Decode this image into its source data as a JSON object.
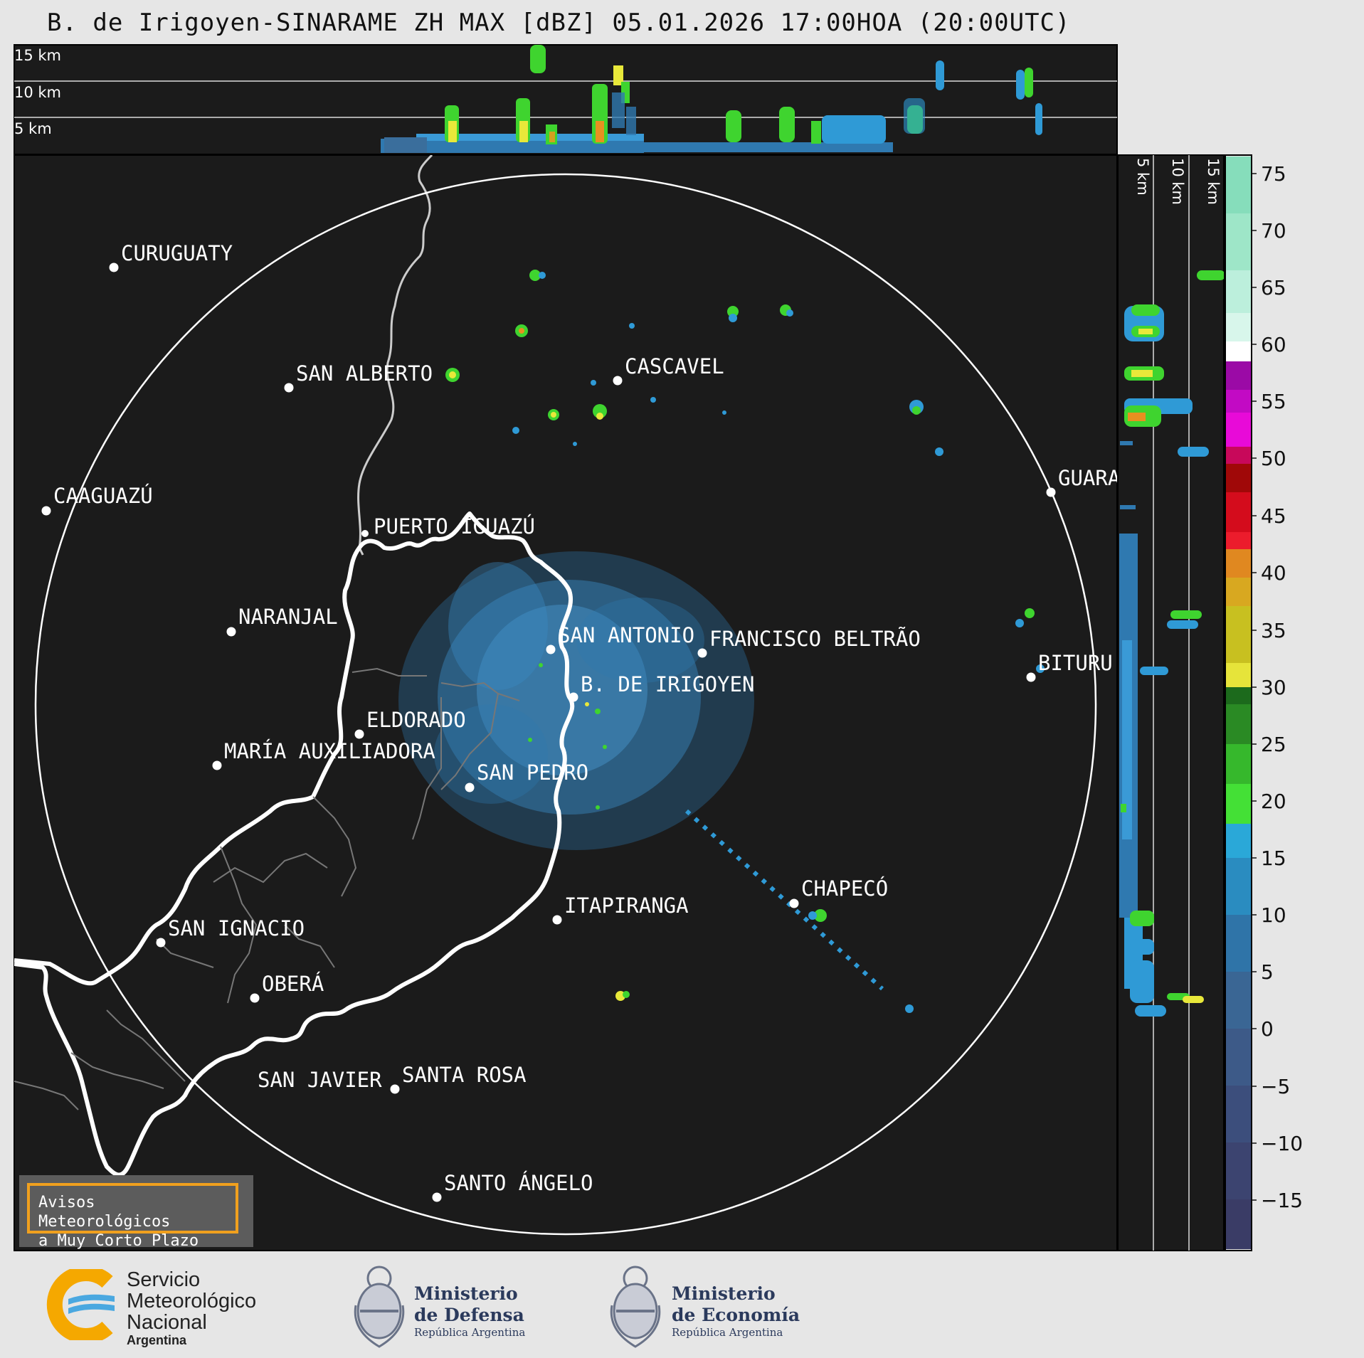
{
  "title": "B. de Irigoyen-SINARAME ZH MAX [dBZ] 05.01.2026 17:00HOA (20:00UTC)",
  "height_labels_top": [
    "15 km",
    "10 km",
    "5 km"
  ],
  "height_labels_side": [
    "5 km",
    "10 km",
    "15 km"
  ],
  "cities": [
    {
      "name": "CURUGUATY"
    },
    {
      "name": "SAN ALBERTO"
    },
    {
      "name": "CASCAVEL"
    },
    {
      "name": "CAAGUAZÚ"
    },
    {
      "name": "GUARA"
    },
    {
      "name": "PUERTO IGUAZÚ"
    },
    {
      "name": "NARANJAL"
    },
    {
      "name": "SAN ANTONIO"
    },
    {
      "name": "FRANCISCO BELTRÃO"
    },
    {
      "name": "BITURU"
    },
    {
      "name": "B. DE IRIGOYEN"
    },
    {
      "name": "ELDORADO"
    },
    {
      "name": "MARÍA AUXILIADORA"
    },
    {
      "name": "SAN PEDRO"
    },
    {
      "name": "CHAPECÓ"
    },
    {
      "name": "ITAPIRANGA"
    },
    {
      "name": "SAN IGNACIO"
    },
    {
      "name": "OBERÁ"
    },
    {
      "name": "SAN JAVIER"
    },
    {
      "name": "SANTA ROSA"
    },
    {
      "name": "SANTO ÁNGELO"
    }
  ],
  "colorbar": {
    "ticks": [
      "75",
      "70",
      "65",
      "60",
      "55",
      "50",
      "45",
      "40",
      "35",
      "30",
      "25",
      "20",
      "15",
      "10",
      "5",
      "0",
      "−5",
      "−10",
      "−15"
    ]
  },
  "avisos_text": "Avisos Meteorológicos\na Muy Corto Plazo",
  "logos": {
    "smn": {
      "lines": [
        "Servicio",
        "Meteorológico",
        "Nacional"
      ],
      "country": "Argentina"
    },
    "defensa": {
      "lines": [
        "Ministerio",
        "de Defensa"
      ],
      "sub": "República Argentina"
    },
    "economia": {
      "lines": [
        "Ministerio",
        "de Economía"
      ],
      "sub": "República Argentina"
    }
  },
  "colors": {
    "map_background": "#1b1b1b",
    "page_background": "#e6e6e6",
    "range_ring": "#ffffff",
    "echo_weak": "#2f79b0",
    "echo_mid": "#3fd42f",
    "echo_strong": "#e8e83a",
    "avisos_border": "#f0a01e"
  }
}
